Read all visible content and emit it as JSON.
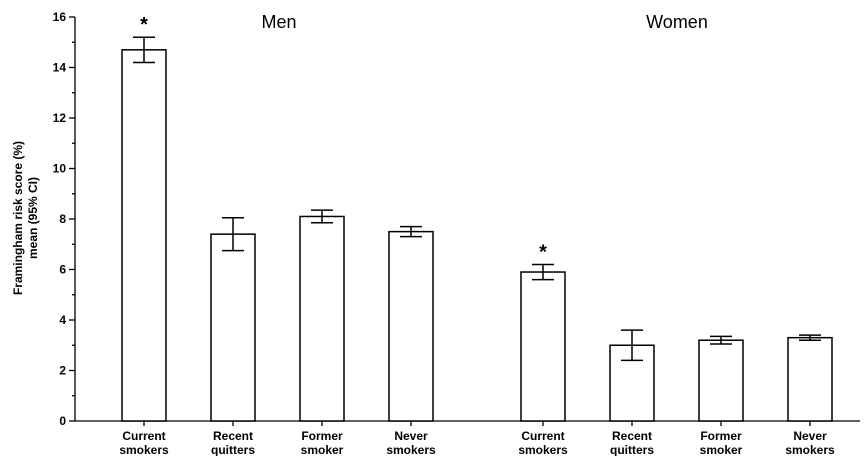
{
  "chart_data": {
    "type": "bar",
    "ylabel_line1": "Framingham risk score (%)",
    "ylabel_line2": "mean (95% CI)",
    "ylim": [
      0,
      16
    ],
    "yticks": [
      0,
      2,
      4,
      6,
      8,
      10,
      12,
      14,
      16
    ],
    "grid": false,
    "legend": "none",
    "groups": [
      {
        "title": "Men",
        "bars": [
          {
            "line1": "Current",
            "line2": "smokers",
            "value": 14.7,
            "ci_low": 14.2,
            "ci_high": 15.2,
            "marker": "*"
          },
          {
            "line1": "Recent",
            "line2": "quitters",
            "value": 7.4,
            "ci_low": 6.75,
            "ci_high": 8.05,
            "marker": ""
          },
          {
            "line1": "Former",
            "line2": "smoker",
            "value": 8.1,
            "ci_low": 7.85,
            "ci_high": 8.35,
            "marker": ""
          },
          {
            "line1": "Never",
            "line2": "smokers",
            "value": 7.5,
            "ci_low": 7.3,
            "ci_high": 7.7,
            "marker": ""
          }
        ]
      },
      {
        "title": "Women",
        "bars": [
          {
            "line1": "Current",
            "line2": "smokers",
            "value": 5.9,
            "ci_low": 5.6,
            "ci_high": 6.2,
            "marker": "*"
          },
          {
            "line1": "Recent",
            "line2": "quitters",
            "value": 3.0,
            "ci_low": 2.4,
            "ci_high": 3.6,
            "marker": ""
          },
          {
            "line1": "Former",
            "line2": "smoker",
            "value": 3.2,
            "ci_low": 3.05,
            "ci_high": 3.35,
            "marker": ""
          },
          {
            "line1": "Never",
            "line2": "smokers",
            "value": 3.3,
            "ci_low": 3.2,
            "ci_high": 3.4,
            "marker": ""
          }
        ]
      }
    ]
  }
}
